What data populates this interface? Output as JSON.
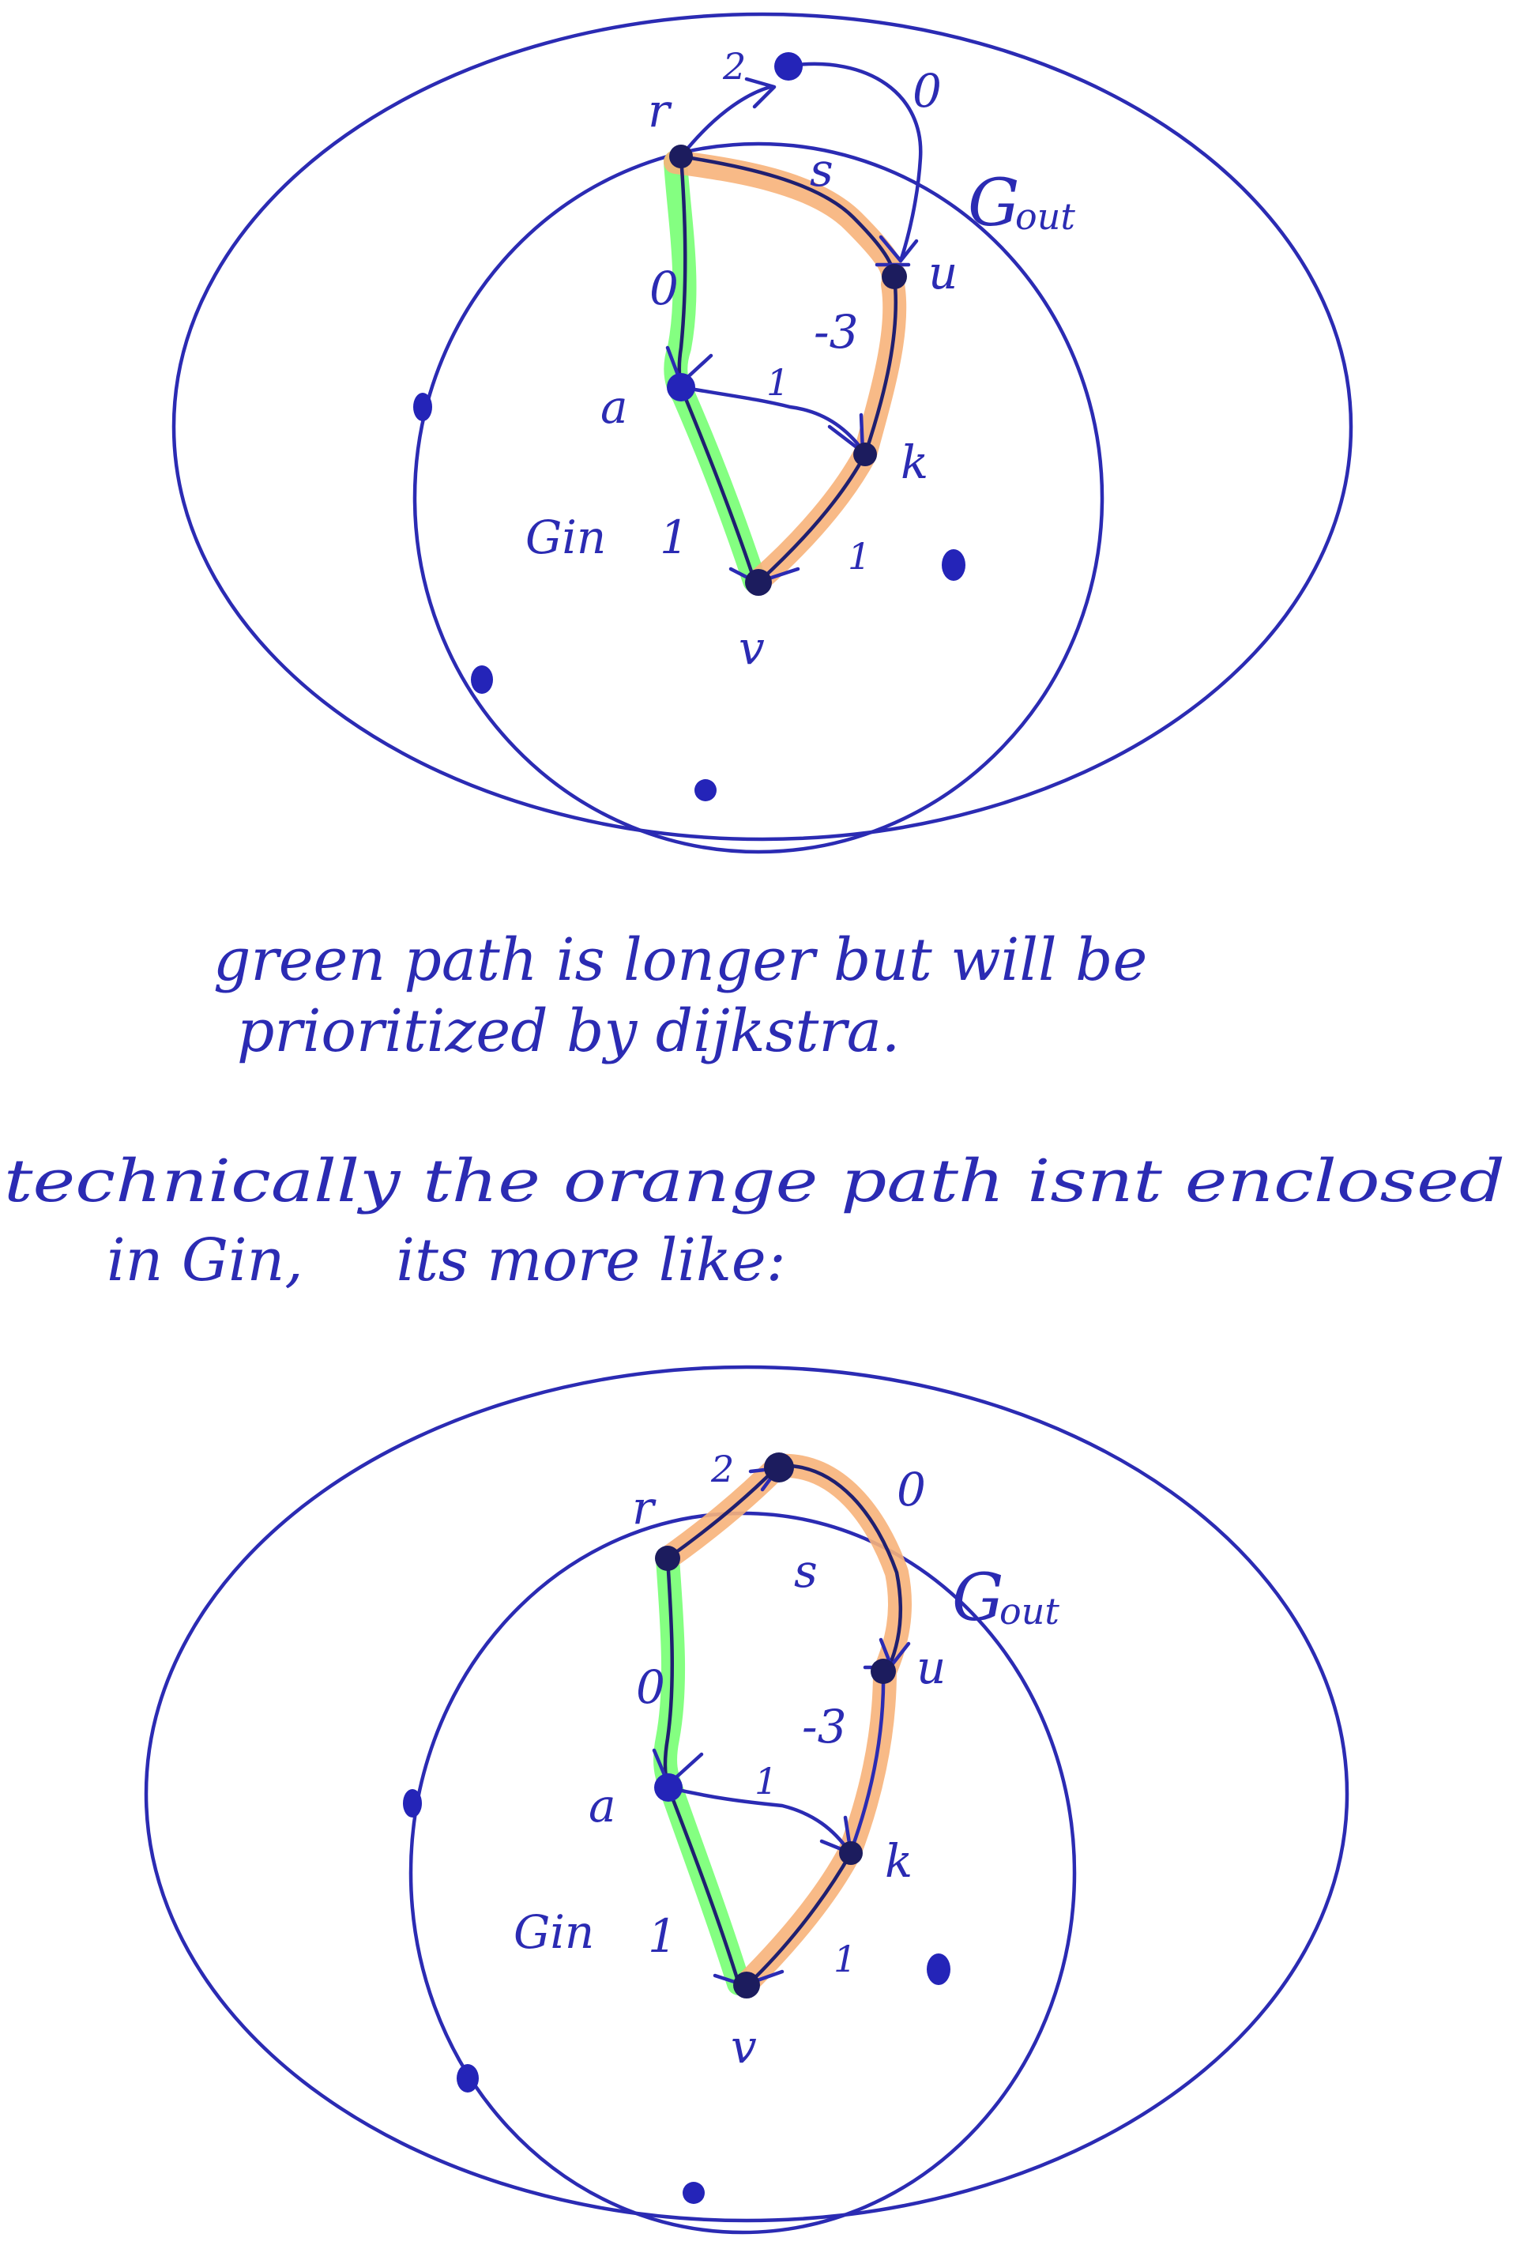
{
  "colors": {
    "ink": "#2b2bb3",
    "green_highlight": "#7dff7a",
    "orange_highlight": "#f7b27a"
  },
  "diagrams": [
    {
      "region_outer_label": "G",
      "region_outer_sub": "out",
      "region_inner_label": "Gin",
      "nodes": {
        "r": "r",
        "s": "s",
        "u": "u",
        "a": "a",
        "k": "k",
        "v": "v"
      },
      "edge_weights": {
        "r_to_top": "2",
        "top_to_u": "0",
        "r_to_a": "0",
        "r_to_u": "s",
        "u_to_k": "-3",
        "a_to_k": "1",
        "a_to_v": "1",
        "k_to_v": "1"
      },
      "highlights": {
        "green": "r-a-v",
        "orange": "r-u-k-v"
      }
    },
    {
      "region_outer_label": "G",
      "region_outer_sub": "out",
      "region_inner_label": "Gin",
      "nodes": {
        "r": "r",
        "s": "s",
        "u": "u",
        "a": "a",
        "k": "k",
        "v": "v"
      },
      "edge_weights": {
        "r_to_top": "2",
        "top_to_u": "0",
        "r_to_a": "0",
        "r_to_u": "s",
        "u_to_k": "-3",
        "a_to_k": "1",
        "a_to_v": "1",
        "k_to_v": "1"
      },
      "highlights": {
        "green": "r-a-v",
        "orange": "r-top-u-k-v"
      }
    }
  ],
  "notes": {
    "line1": "green path is longer but will be",
    "line2": "prioritized by dijkstra.",
    "line3": "technically the orange path isnt enclosed",
    "line4": "in Gin,     its more like:"
  }
}
